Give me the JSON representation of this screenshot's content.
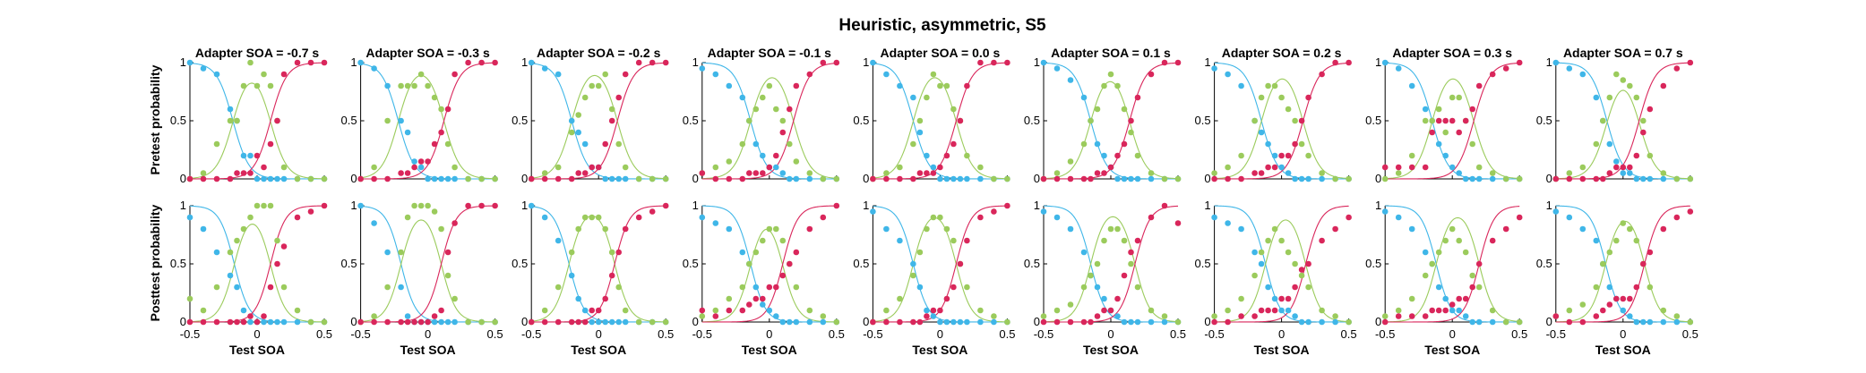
{
  "figure_title": "Heuristic, asymmetric, S5",
  "row_ylabels": [
    "Pretest probability",
    "Posttest probability"
  ],
  "x_label": "Test SOA",
  "x_ticks": [
    -0.5,
    0,
    0.5
  ],
  "x_tick_labels": [
    "-0.5",
    "0",
    "0.5"
  ],
  "y_ticks": [
    0,
    0.5,
    1
  ],
  "y_tick_labels": [
    "0",
    "0.5",
    "1"
  ],
  "colors": {
    "blue": "#3fb6e8",
    "green": "#9bcb5c",
    "red": "#d9265b"
  },
  "chart_data": {
    "type": "scatter",
    "test_soa": [
      -0.5,
      -0.4,
      -0.3,
      -0.2,
      -0.15,
      -0.1,
      -0.05,
      0,
      0.05,
      0.1,
      0.15,
      0.2,
      0.3,
      0.4,
      0.5
    ],
    "xlim": [
      -0.5,
      0.5
    ],
    "ylim": [
      0,
      1
    ],
    "legend": "none",
    "grid": false,
    "panels": [
      {
        "adapter_label": "Adapter SOA = -0.7 s",
        "pre": {
          "blue": [
            1.0,
            0.95,
            0.9,
            0.6,
            0.5,
            0.2,
            0.2,
            0.0,
            0.0,
            0.0,
            0.0,
            0.0,
            0.0,
            0.0,
            0.0
          ],
          "green": [
            0.0,
            0.05,
            0.3,
            0.5,
            0.5,
            0.8,
            1.0,
            0.8,
            0.9,
            0.8,
            0.5,
            0.1,
            0.0,
            0.0,
            0.0
          ],
          "red": [
            0.0,
            0.0,
            0.0,
            0.0,
            0.05,
            0.05,
            0.05,
            0.2,
            0.1,
            0.3,
            0.5,
            0.9,
            1.0,
            1.0,
            1.0
          ]
        },
        "post": {
          "blue": [
            0.9,
            0.8,
            0.6,
            0.4,
            0.3,
            0.1,
            0.0,
            0.0,
            0.0,
            0.0,
            0.0,
            0.0,
            0.0,
            0.0,
            0.0
          ],
          "green": [
            0.2,
            0.1,
            0.3,
            0.6,
            0.7,
            0.8,
            0.9,
            1.0,
            1.0,
            1.0,
            0.7,
            0.3,
            0.1,
            0.0,
            0.0
          ],
          "red": [
            0.0,
            0.0,
            0.0,
            0.0,
            0.0,
            0.0,
            0.05,
            0.0,
            0.05,
            0.3,
            0.5,
            0.65,
            0.9,
            0.95,
            1.0
          ]
        }
      },
      {
        "adapter_label": "Adapter SOA = -0.3 s",
        "pre": {
          "blue": [
            1.0,
            0.95,
            0.8,
            0.5,
            0.4,
            0.15,
            0.1,
            0.0,
            0.0,
            0.0,
            0.0,
            0.0,
            0.0,
            0.0,
            0.0
          ],
          "green": [
            0.0,
            0.1,
            0.5,
            0.8,
            0.8,
            0.8,
            0.9,
            0.8,
            0.7,
            0.6,
            0.3,
            0.1,
            0.0,
            0.0,
            0.0
          ],
          "red": [
            0.0,
            0.0,
            0.0,
            0.05,
            0.05,
            0.1,
            0.15,
            0.15,
            0.3,
            0.4,
            0.6,
            0.9,
            1.0,
            1.0,
            1.0
          ]
        },
        "post": {
          "blue": [
            1.0,
            0.85,
            0.6,
            0.3,
            0.05,
            0.0,
            0.0,
            0.0,
            0.0,
            0.0,
            0.0,
            0.0,
            0.0,
            0.0,
            0.0
          ],
          "green": [
            0.0,
            0.05,
            0.3,
            0.6,
            0.9,
            1.0,
            1.0,
            1.0,
            0.95,
            0.8,
            0.4,
            0.2,
            0.0,
            0.0,
            0.0
          ],
          "red": [
            0.0,
            0.0,
            0.0,
            0.0,
            0.0,
            0.0,
            0.0,
            0.0,
            0.05,
            0.1,
            0.6,
            0.85,
            1.0,
            1.0,
            1.0
          ]
        }
      },
      {
        "adapter_label": "Adapter SOA = -0.2 s",
        "pre": {
          "blue": [
            1.0,
            0.95,
            0.9,
            0.5,
            0.4,
            0.3,
            0.1,
            0.1,
            0.0,
            0.0,
            0.0,
            0.0,
            0.0,
            0.0,
            0.0
          ],
          "green": [
            0.0,
            0.05,
            0.1,
            0.4,
            0.55,
            0.7,
            0.8,
            0.8,
            0.9,
            0.6,
            0.3,
            0.1,
            0.0,
            0.0,
            0.0
          ],
          "red": [
            0.0,
            0.0,
            0.0,
            0.0,
            0.05,
            0.05,
            0.1,
            0.1,
            0.3,
            0.5,
            0.7,
            0.9,
            1.0,
            1.0,
            1.0
          ]
        },
        "post": {
          "blue": [
            1.0,
            0.9,
            0.7,
            0.4,
            0.2,
            0.1,
            0.0,
            0.0,
            0.0,
            0.0,
            0.0,
            0.0,
            0.0,
            0.0,
            0.0
          ],
          "green": [
            0.0,
            0.1,
            0.3,
            0.6,
            0.8,
            0.9,
            0.9,
            0.9,
            0.8,
            0.6,
            0.3,
            0.1,
            0.0,
            0.0,
            0.0
          ],
          "red": [
            0.0,
            0.0,
            0.0,
            0.0,
            0.0,
            0.0,
            0.1,
            0.1,
            0.2,
            0.4,
            0.6,
            0.8,
            0.9,
            0.95,
            1.0
          ]
        }
      },
      {
        "adapter_label": "Adapter SOA = -0.1 s",
        "pre": {
          "blue": [
            0.95,
            0.9,
            0.8,
            0.7,
            0.5,
            0.3,
            0.2,
            0.1,
            0.1,
            0.05,
            0.0,
            0.0,
            0.0,
            0.0,
            0.0
          ],
          "green": [
            0.05,
            0.1,
            0.15,
            0.3,
            0.5,
            0.6,
            0.7,
            0.8,
            0.6,
            0.5,
            0.3,
            0.15,
            0.05,
            0.0,
            0.0
          ],
          "red": [
            0.05,
            0.0,
            0.0,
            0.0,
            0.05,
            0.05,
            0.05,
            0.1,
            0.2,
            0.4,
            0.6,
            0.8,
            0.9,
            1.0,
            1.0
          ]
        },
        "post": {
          "blue": [
            0.9,
            0.85,
            0.8,
            0.6,
            0.5,
            0.3,
            0.15,
            0.1,
            0.05,
            0.0,
            0.0,
            0.0,
            0.0,
            0.0,
            0.0
          ],
          "green": [
            0.05,
            0.1,
            0.2,
            0.3,
            0.5,
            0.6,
            0.7,
            0.8,
            0.8,
            0.7,
            0.5,
            0.3,
            0.1,
            0.05,
            0.0
          ],
          "red": [
            0.1,
            0.05,
            0.1,
            0.1,
            0.15,
            0.2,
            0.2,
            0.3,
            0.3,
            0.4,
            0.5,
            0.6,
            0.8,
            0.9,
            1.0
          ]
        }
      },
      {
        "adapter_label": "Adapter SOA = 0.0 s",
        "pre": {
          "blue": [
            1.0,
            0.9,
            0.8,
            0.7,
            0.4,
            0.2,
            0.1,
            0.0,
            0.0,
            0.0,
            0.0,
            0.0,
            0.0,
            0.0,
            0.0
          ],
          "green": [
            0.0,
            0.05,
            0.1,
            0.3,
            0.5,
            0.7,
            0.9,
            0.8,
            0.8,
            0.6,
            0.5,
            0.2,
            0.1,
            0.0,
            0.0
          ],
          "red": [
            0.0,
            0.0,
            0.0,
            0.0,
            0.05,
            0.05,
            0.05,
            0.1,
            0.2,
            0.3,
            0.5,
            0.8,
            1.0,
            1.0,
            1.0
          ]
        },
        "post": {
          "blue": [
            0.95,
            0.8,
            0.7,
            0.5,
            0.3,
            0.1,
            0.05,
            0.0,
            0.0,
            0.0,
            0.0,
            0.0,
            0.0,
            0.0,
            0.0
          ],
          "green": [
            0.0,
            0.1,
            0.2,
            0.4,
            0.6,
            0.8,
            0.9,
            0.9,
            0.8,
            0.7,
            0.5,
            0.3,
            0.1,
            0.05,
            0.0
          ],
          "red": [
            0.0,
            0.0,
            0.0,
            0.0,
            0.0,
            0.05,
            0.1,
            0.1,
            0.2,
            0.3,
            0.5,
            0.7,
            0.9,
            0.95,
            1.0
          ]
        }
      },
      {
        "adapter_label": "Adapter SOA = 0.1 s",
        "pre": {
          "blue": [
            1.0,
            0.95,
            0.85,
            0.7,
            0.5,
            0.3,
            0.2,
            0.1,
            0.0,
            0.0,
            0.0,
            0.0,
            0.0,
            0.0,
            0.0
          ],
          "green": [
            0.0,
            0.05,
            0.15,
            0.3,
            0.5,
            0.6,
            0.8,
            0.9,
            0.8,
            0.6,
            0.4,
            0.2,
            0.05,
            0.0,
            0.0
          ],
          "red": [
            0.0,
            0.0,
            0.0,
            0.0,
            0.0,
            0.05,
            0.05,
            0.1,
            0.2,
            0.3,
            0.5,
            0.7,
            0.9,
            1.0,
            1.0
          ]
        },
        "post": {
          "blue": [
            0.95,
            0.9,
            0.8,
            0.6,
            0.4,
            0.3,
            0.2,
            0.1,
            0.05,
            0.0,
            0.0,
            0.0,
            0.0,
            0.0,
            0.0
          ],
          "green": [
            0.05,
            0.1,
            0.15,
            0.3,
            0.4,
            0.5,
            0.7,
            0.8,
            0.8,
            0.7,
            0.5,
            0.3,
            0.1,
            0.05,
            0.0
          ],
          "red": [
            0.0,
            0.0,
            0.0,
            0.0,
            0.0,
            0.05,
            0.1,
            0.1,
            0.2,
            0.4,
            0.6,
            0.7,
            0.9,
            1.0,
            0.85
          ]
        }
      },
      {
        "adapter_label": "Adapter SOA = 0.2 s",
        "pre": {
          "blue": [
            0.95,
            0.9,
            0.8,
            0.5,
            0.4,
            0.3,
            0.2,
            0.1,
            0.05,
            0.0,
            0.0,
            0.0,
            0.0,
            0.0,
            0.0
          ],
          "green": [
            0.05,
            0.1,
            0.2,
            0.5,
            0.7,
            0.8,
            0.8,
            0.7,
            0.6,
            0.5,
            0.3,
            0.2,
            0.05,
            0.0,
            0.0
          ],
          "red": [
            0.0,
            0.0,
            0.0,
            0.05,
            0.05,
            0.1,
            0.1,
            0.2,
            0.2,
            0.3,
            0.5,
            0.7,
            0.9,
            1.0,
            1.0
          ]
        },
        "post": {
          "blue": [
            0.9,
            0.85,
            0.8,
            0.6,
            0.5,
            0.3,
            0.2,
            0.1,
            0.1,
            0.05,
            0.0,
            0.0,
            0.0,
            0.0,
            0.0
          ],
          "green": [
            0.05,
            0.1,
            0.2,
            0.4,
            0.6,
            0.7,
            0.8,
            0.7,
            0.6,
            0.5,
            0.4,
            0.3,
            0.1,
            0.05,
            0.0
          ],
          "red": [
            0.0,
            0.0,
            0.05,
            0.05,
            0.1,
            0.1,
            0.1,
            0.2,
            0.2,
            0.3,
            0.45,
            0.5,
            0.7,
            0.8,
            0.9
          ]
        }
      },
      {
        "adapter_label": "Adapter SOA = 0.3 s",
        "pre": {
          "blue": [
            1.0,
            0.95,
            0.8,
            0.6,
            0.5,
            0.3,
            0.2,
            0.1,
            0.05,
            0.0,
            0.0,
            0.0,
            0.0,
            0.0,
            0.0
          ],
          "green": [
            0.0,
            0.05,
            0.2,
            0.5,
            0.5,
            0.6,
            0.4,
            0.7,
            0.7,
            0.5,
            0.3,
            0.1,
            0.05,
            0.0,
            0.0
          ],
          "red": [
            0.1,
            0.1,
            0.1,
            0.1,
            0.4,
            0.5,
            0.5,
            0.5,
            0.4,
            0.5,
            0.6,
            0.8,
            0.9,
            0.95,
            1.0
          ]
        },
        "post": {
          "blue": [
            0.95,
            0.9,
            0.8,
            0.6,
            0.5,
            0.3,
            0.2,
            0.1,
            0.1,
            0.05,
            0.0,
            0.0,
            0.0,
            0.0,
            0.0
          ],
          "green": [
            0.05,
            0.1,
            0.2,
            0.4,
            0.5,
            0.6,
            0.7,
            0.8,
            0.7,
            0.6,
            0.4,
            0.3,
            0.1,
            0.0,
            0.0
          ],
          "red": [
            0.0,
            0.05,
            0.05,
            0.05,
            0.1,
            0.1,
            0.1,
            0.15,
            0.2,
            0.2,
            0.3,
            0.5,
            0.7,
            0.8,
            0.9
          ]
        }
      },
      {
        "adapter_label": "Adapter SOA = 0.7 s",
        "pre": {
          "blue": [
            1.0,
            0.95,
            0.9,
            0.7,
            0.5,
            0.3,
            0.15,
            0.05,
            0.05,
            0.0,
            0.0,
            0.0,
            0.0,
            0.0,
            0.0
          ],
          "green": [
            0.0,
            0.05,
            0.1,
            0.3,
            0.5,
            0.7,
            0.9,
            0.85,
            0.8,
            0.7,
            0.5,
            0.2,
            0.05,
            0.0,
            0.0
          ],
          "red": [
            0.0,
            0.0,
            0.0,
            0.0,
            0.0,
            0.05,
            0.1,
            0.1,
            0.1,
            0.2,
            0.4,
            0.6,
            0.8,
            0.95,
            1.0
          ]
        },
        "post": {
          "blue": [
            0.95,
            0.9,
            0.8,
            0.7,
            0.5,
            0.3,
            0.2,
            0.1,
            0.05,
            0.0,
            0.0,
            0.0,
            0.0,
            0.0,
            0.0
          ],
          "green": [
            0.05,
            0.1,
            0.15,
            0.3,
            0.5,
            0.6,
            0.7,
            0.85,
            0.8,
            0.7,
            0.5,
            0.3,
            0.1,
            0.05,
            0.0
          ],
          "red": [
            0.05,
            0.0,
            0.0,
            0.05,
            0.1,
            0.15,
            0.2,
            0.2,
            0.2,
            0.3,
            0.5,
            0.6,
            0.8,
            0.9,
            0.95
          ]
        }
      }
    ],
    "fits": {
      "pre": {
        "blue_mu": [
          -0.18,
          -0.22,
          -0.2,
          -0.14,
          -0.2,
          -0.15,
          -0.15,
          -0.15,
          -0.12
        ],
        "red_mu": [
          0.1,
          0.12,
          0.14,
          0.18,
          0.12,
          0.14,
          0.16,
          0.16,
          0.12
        ],
        "slope": 0.06
      },
      "post": {
        "blue_mu": [
          -0.17,
          -0.2,
          -0.22,
          -0.14,
          -0.2,
          -0.15,
          -0.12,
          -0.12,
          -0.13
        ],
        "red_mu": [
          0.1,
          0.1,
          0.12,
          0.1,
          0.12,
          0.18,
          0.18,
          0.2,
          0.16
        ],
        "slope": 0.055
      }
    }
  }
}
